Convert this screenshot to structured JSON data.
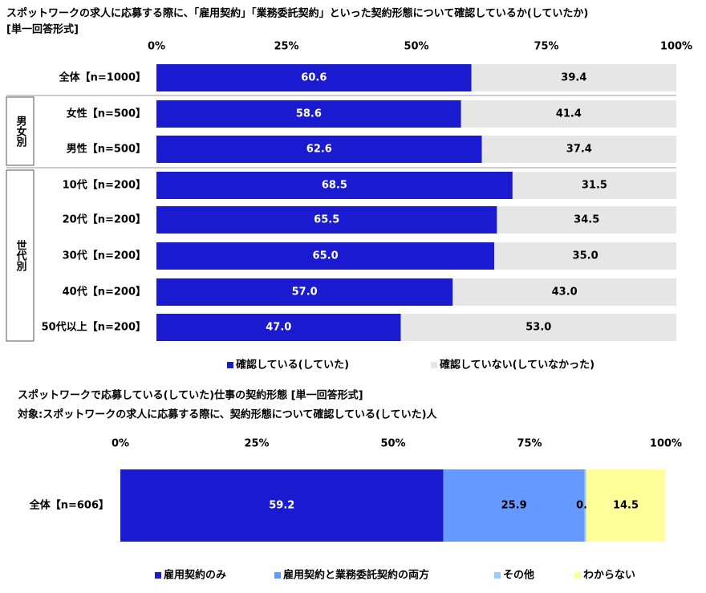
{
  "chart_data": [
    {
      "type": "stacked-bar-horizontal",
      "title": "スポットワークの求人に応募する際に、「雇用契約」「業務委託契約」といった契約形態について確認しているか(していたか)",
      "subtitle": "[単一回答形式]",
      "categories": [
        "全体【n=1000】",
        "女性【n=500】",
        "男性【n=500】",
        "10代【n=200】",
        "20代【n=200】",
        "30代【n=200】",
        "40代【n=200】",
        "50代以上【n=200】"
      ],
      "groups": [
        {
          "label": "男女別"
        },
        {
          "label": "世代別"
        }
      ],
      "xlim": [
        0,
        100
      ],
      "xticks": [
        {
          "value": 0,
          "label": "0%"
        },
        {
          "value": 25,
          "label": "25%"
        },
        {
          "value": 50,
          "label": "50%"
        },
        {
          "value": 75,
          "label": "75%"
        },
        {
          "value": 100,
          "label": "100%"
        }
      ],
      "series": [
        {
          "name": "確認している(していた)",
          "color": "#1a1ad0",
          "values": [
            60.6,
            58.6,
            62.6,
            68.5,
            65.5,
            65.0,
            57.0,
            47.0
          ],
          "value_labels": [
            "60.6",
            "58.6",
            "62.6",
            "68.5",
            "65.5",
            "65.0",
            "57.0",
            "47.0"
          ]
        },
        {
          "name": "確認していない(していなかった)",
          "color": "#e6e6e6",
          "values": [
            39.4,
            41.4,
            37.4,
            31.5,
            34.5,
            35.0,
            43.0,
            53.0
          ],
          "value_labels": [
            "39.4",
            "41.4",
            "37.4",
            "31.5",
            "34.5",
            "35.0",
            "43.0",
            "53.0"
          ]
        }
      ]
    },
    {
      "type": "stacked-bar-horizontal",
      "title": "スポットワークで応募している(していた)仕事の契約形態 [単一回答形式]",
      "subtitle": "対象:スポットワークの求人に応募する際に、契約形態について確認している(していた)人",
      "categories": [
        "全体【n=606】"
      ],
      "xlim": [
        0,
        100
      ],
      "xticks": [
        {
          "value": 0,
          "label": "0%"
        },
        {
          "value": 25,
          "label": "25%"
        },
        {
          "value": 50,
          "label": "50%"
        },
        {
          "value": 75,
          "label": "75%"
        },
        {
          "value": 100,
          "label": "100%"
        }
      ],
      "series": [
        {
          "name": "雇用契約のみ",
          "color": "#1a1ad0",
          "values": [
            59.2
          ]
        },
        {
          "name": "雇用契約と業務委託契約の両方",
          "color": "#6699ff",
          "values": [
            25.9
          ]
        },
        {
          "name": "その他",
          "color": "#99ccff",
          "values": [
            0.3
          ]
        },
        {
          "name": "わからない",
          "color": "#ffff99",
          "values": [
            14.5
          ]
        }
      ]
    }
  ]
}
